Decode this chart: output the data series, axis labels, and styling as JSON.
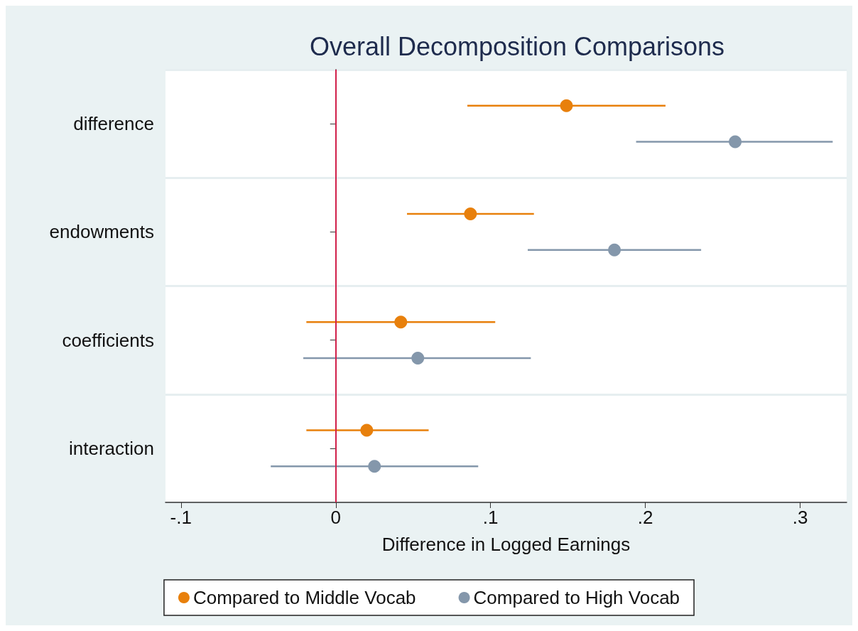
{
  "chart_data": {
    "type": "scatter",
    "title": "Overall Decomposition Comparisons",
    "xlabel": "Difference in Logged Earnings",
    "categories": [
      "difference",
      "endowments",
      "coefficients",
      "interaction"
    ],
    "series": [
      {
        "name": "Compared to Middle Vocab",
        "color": "#e8800c",
        "values": [
          0.149,
          0.087,
          0.042,
          0.02
        ],
        "errors": [
          [
            0.085,
            0.213
          ],
          [
            0.046,
            0.128
          ],
          [
            -0.019,
            0.103
          ],
          [
            -0.019,
            0.06
          ]
        ]
      },
      {
        "name": "Compared to High Vocab",
        "color": "#8497ab",
        "values": [
          0.258,
          0.18,
          0.053,
          0.025
        ],
        "errors": [
          [
            0.194,
            0.321
          ],
          [
            0.124,
            0.236
          ],
          [
            -0.021,
            0.126
          ],
          [
            -0.042,
            0.092
          ]
        ]
      }
    ],
    "orientation": "horizontal",
    "xlim": [
      -0.11,
      0.33
    ],
    "xticks": [
      {
        "value": -0.1,
        "label": "-.1"
      },
      0,
      {
        "value": 0.1,
        "label": ".1"
      },
      {
        "value": 0.2,
        "label": ".2"
      },
      {
        "value": 0.3,
        "label": ".3"
      }
    ],
    "ref_lines": [
      {
        "axis": "x",
        "value": 0,
        "color": "#d1204a"
      }
    ],
    "grid": "y",
    "legend": "bottom",
    "marker": "circle"
  }
}
